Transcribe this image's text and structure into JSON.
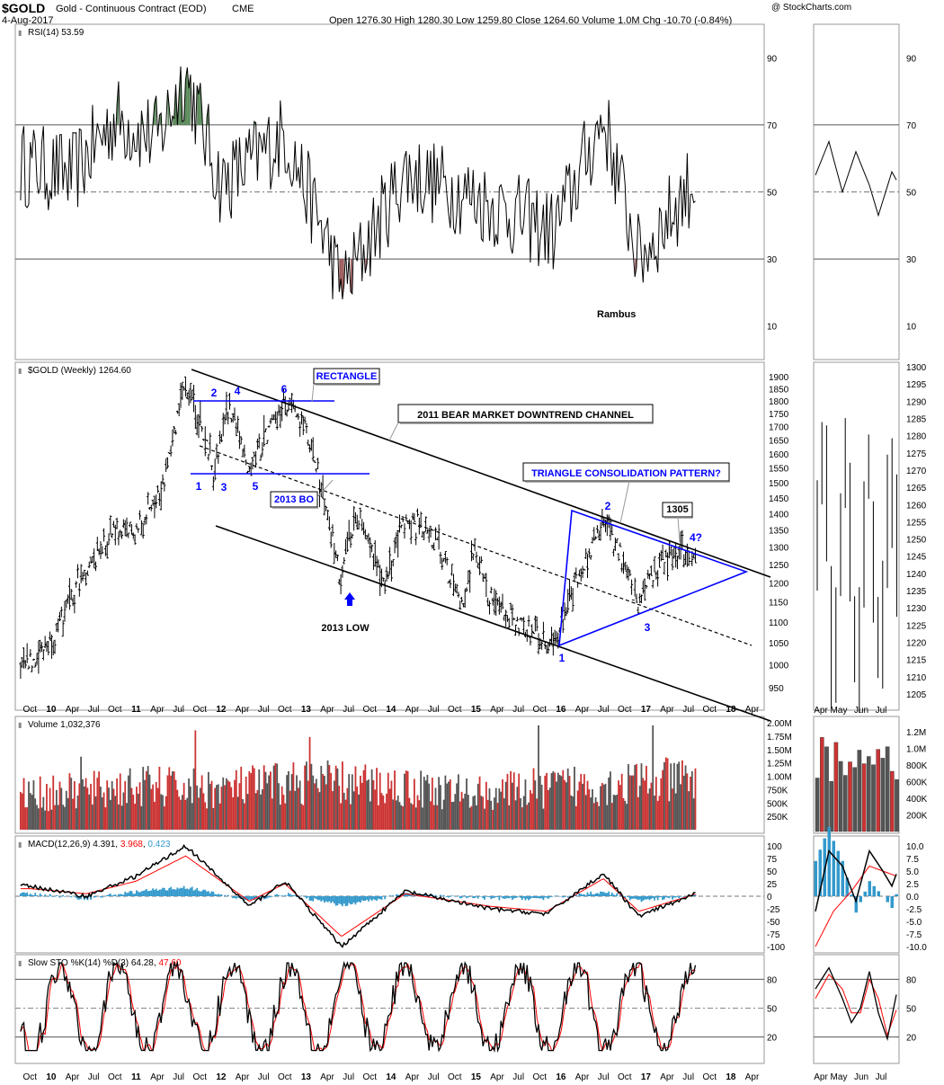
{
  "header": {
    "symbol": "$GOLD",
    "name": "Gold - Continuous Contract (EOD)",
    "exchange": "CME",
    "date": "4-Aug-2017",
    "ohlc": "Open 1276.30  High 1280.30  Low 1259.80  Close 1264.60  Volume 1.0M  Chg -10.70 (-0.84%)",
    "watermark": "@ StockCharts.com"
  },
  "colors": {
    "price_bar": "#000000",
    "volume_up": "#555555",
    "volume_down": "#cc3333",
    "channel": "#000000",
    "triangle": "#0000ff",
    "rsi_ob": "#5a8a5a",
    "rsi_os": "#9a5a5a",
    "macd_hist": "#3399cc",
    "signal": "#ff0000",
    "label_blue": "#0000ff"
  },
  "panels": {
    "rsi": {
      "label": "RSI(14) 53.59",
      "ticks": [
        90,
        70,
        50,
        30,
        10
      ]
    },
    "price": {
      "label": "$GOLD (Weekly) 1264.60"
    },
    "volume": {
      "label": "Volume 1,032,376",
      "ticks": [
        "2.00M",
        "1.75M",
        "1.50M",
        "1.25M",
        "1.00M",
        "750K",
        "500K",
        "250K"
      ],
      "side_ticks": [
        "1.2M",
        "1.0M",
        "800K",
        "600K",
        "400K",
        "200K"
      ]
    },
    "macd": {
      "label_main": "MACD(12,26,9) 4.391, ",
      "label_signal": "3.968",
      "label_sep": ", ",
      "label_hist": "0.423",
      "ticks": [
        100,
        75,
        50,
        25,
        0,
        -25,
        -50,
        -75,
        -100
      ],
      "side_ticks": [
        "10.0",
        "7.5",
        "5.0",
        "2.5",
        "0.0",
        "-2.5",
        "-5.0",
        "-7.5",
        "-10.0"
      ]
    },
    "sto": {
      "label_main": "Slow STO %K(14) %D(3) ",
      "label_k": "64.28",
      "label_sep": ", ",
      "label_d": "47.60",
      "ticks": [
        80,
        50,
        20
      ]
    }
  },
  "xaxis": {
    "main_labels": [
      "Oct",
      "10",
      "Apr",
      "Jul",
      "Oct",
      "11",
      "Apr",
      "Jul",
      "Oct",
      "12",
      "Apr",
      "Jul",
      "Oct",
      "13",
      "Apr",
      "Jul",
      "Oct",
      "14",
      "Apr",
      "Jul",
      "Oct",
      "15",
      "Apr",
      "Jul",
      "Oct",
      "16",
      "Apr",
      "Jul",
      "Oct",
      "17",
      "Apr",
      "Jul",
      "Oct",
      "18",
      "Apr"
    ],
    "side_labels": [
      "Apr",
      "May",
      "Jun",
      "Jul"
    ]
  },
  "annotations": {
    "rectangle": "RECTANGLE",
    "channel": "2011 BEAR MARKET DOWNTREND  CHANNEL",
    "triangle": "TRIANGLE CONSOLIDATION PATTERN?",
    "bo": "2013 BO",
    "low": "2013 LOW",
    "p1305": "1305",
    "rambus": "Rambus",
    "waves_top": [
      "2",
      "4",
      "6"
    ],
    "waves_bottom": [
      "1",
      "3",
      "5"
    ],
    "tri_waves": [
      "1",
      "2",
      "3",
      "4?"
    ]
  },
  "chart_data": [
    {
      "type": "line",
      "title": "RSI(14) 53.59",
      "ylim": [
        0,
        100
      ],
      "overbought": 70,
      "oversold": 30,
      "midline": 50,
      "series": [
        {
          "name": "RSI(14)",
          "x": [
            "2009-10",
            "2010-04",
            "2010-10",
            "2011-04",
            "2011-08",
            "2012-01",
            "2012-10",
            "2013-04",
            "2013-06",
            "2014-03",
            "2015-01",
            "2015-12",
            "2016-07",
            "2016-12",
            "2017-08"
          ],
          "values": [
            58,
            55,
            72,
            66,
            85,
            52,
            67,
            35,
            20,
            56,
            48,
            38,
            72,
            30,
            54
          ]
        }
      ]
    },
    {
      "type": "line",
      "title": "$GOLD (Weekly) 1264.60",
      "ylim": [
        920,
        1920
      ],
      "series": [
        {
          "name": "$GOLD (Weekly)",
          "x": [
            "2009-09",
            "2010-02",
            "2010-06",
            "2010-10",
            "2011-01",
            "2011-05",
            "2011-08",
            "2011-09",
            "2011-12",
            "2012-02",
            "2012-05",
            "2012-10",
            "2013-01",
            "2013-04",
            "2013-06",
            "2013-08",
            "2013-12",
            "2014-03",
            "2014-07",
            "2014-11",
            "2015-01",
            "2015-03",
            "2015-07",
            "2015-12",
            "2016-07",
            "2016-10",
            "2016-12",
            "2017-03",
            "2017-06",
            "2017-08"
          ],
          "values": [
            990,
            1080,
            1240,
            1350,
            1340,
            1520,
            1880,
            1800,
            1540,
            1780,
            1550,
            1790,
            1680,
            1400,
            1200,
            1420,
            1200,
            1390,
            1330,
            1140,
            1300,
            1150,
            1090,
            1050,
            1370,
            1260,
            1130,
            1260,
            1290,
            1264.6
          ]
        }
      ]
    },
    {
      "type": "bar",
      "title": "Volume 1,032,376",
      "ylim": [
        0,
        2000000
      ],
      "series": [
        {
          "name": "Volume",
          "x": [
            "2010",
            "2011",
            "2012",
            "2013",
            "2014",
            "2015",
            "2016",
            "2017-08"
          ],
          "values": [
            750000,
            900000,
            850000,
            1000000,
            900000,
            750000,
            900000,
            1032376
          ]
        }
      ]
    },
    {
      "type": "line",
      "title": "MACD(12,26,9) 4.391, 3.968, 0.423",
      "ylim": [
        -110,
        110
      ],
      "series": [
        {
          "name": "MACD",
          "x": [
            "2009-10",
            "2010-06",
            "2011-01",
            "2011-08",
            "2012-05",
            "2012-10",
            "2013-06",
            "2014-03",
            "2015-03",
            "2015-11",
            "2016-07",
            "2016-12",
            "2017-08"
          ],
          "values": [
            20,
            0,
            40,
            100,
            -20,
            30,
            -100,
            10,
            -25,
            -35,
            45,
            -40,
            4.391
          ]
        },
        {
          "name": "Signal",
          "x": [
            "2009-10",
            "2010-06",
            "2011-01",
            "2011-08",
            "2012-05",
            "2012-10",
            "2013-06",
            "2014-03",
            "2015-03",
            "2015-11",
            "2016-07",
            "2016-12",
            "2017-08"
          ],
          "values": [
            15,
            5,
            30,
            80,
            -10,
            25,
            -80,
            5,
            -20,
            -30,
            35,
            -30,
            3.968
          ]
        }
      ]
    },
    {
      "type": "line",
      "title": "Slow STO %K(14) %D(3) 64.28, 47.60",
      "ylim": [
        0,
        100
      ],
      "series": [
        {
          "name": "%K",
          "x": [
            "2009-10",
            "2010-02",
            "2010-10",
            "2011-06",
            "2011-11",
            "2012-10",
            "2013-04",
            "2014-03",
            "2014-12",
            "2015-12",
            "2016-07",
            "2016-12",
            "2017-06",
            "2017-08"
          ],
          "values": [
            85,
            15,
            90,
            88,
            20,
            95,
            8,
            85,
            10,
            12,
            95,
            8,
            90,
            64.28
          ]
        },
        {
          "name": "%D",
          "x": [
            "2009-10",
            "2010-02",
            "2010-10",
            "2011-06",
            "2011-11",
            "2012-10",
            "2013-04",
            "2014-03",
            "2014-12",
            "2015-12",
            "2016-07",
            "2016-12",
            "2017-06",
            "2017-08"
          ],
          "values": [
            80,
            20,
            85,
            85,
            25,
            90,
            12,
            80,
            15,
            18,
            90,
            12,
            85,
            47.6
          ]
        }
      ]
    }
  ]
}
